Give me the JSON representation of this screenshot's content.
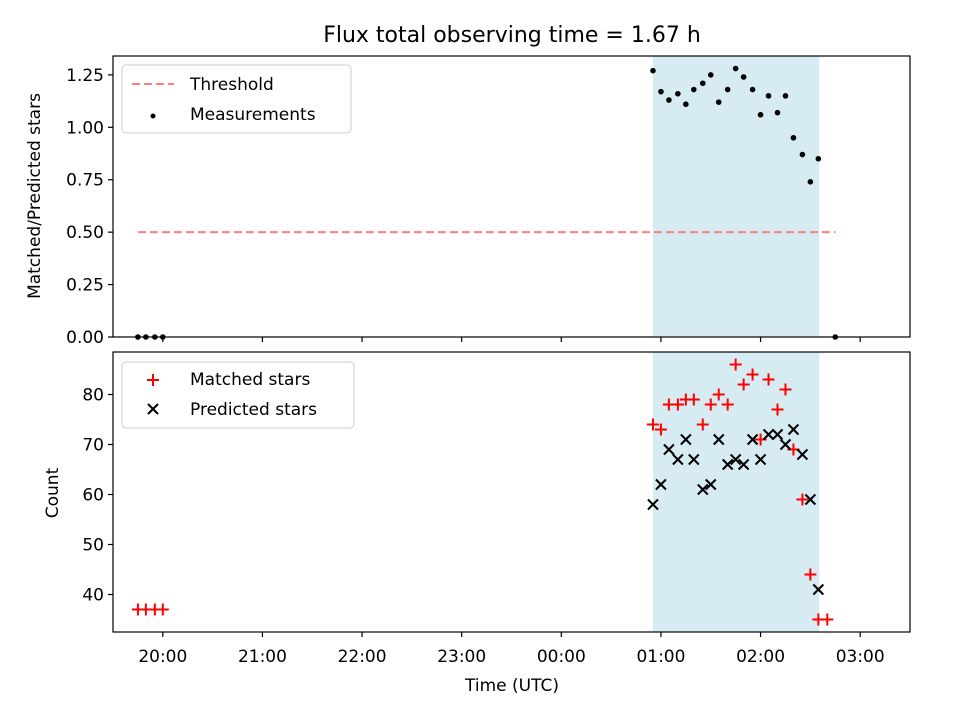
{
  "chart_data": [
    {
      "type": "scatter",
      "title": "Flux total observing time = 1.67 h",
      "xlabel": "",
      "ylabel": "Matched/Predicted stars",
      "xlim": [
        -0.5,
        7.5
      ],
      "ylim": [
        0,
        1.34
      ],
      "xtick_hours": [
        0.0,
        1.0,
        2.0,
        3.0,
        4.0,
        5.0,
        6.0,
        7.0
      ],
      "yticks": [
        0.0,
        0.25,
        0.5,
        0.75,
        1.0,
        1.25
      ],
      "ytick_labels": [
        "0.00",
        "0.25",
        "0.50",
        "0.75",
        "1.00",
        "1.25"
      ],
      "shaded_region": [
        4.92,
        6.59
      ],
      "threshold": {
        "name": "Threshold",
        "x": [
          -0.25,
          6.75
        ],
        "y": 0.5,
        "color": "#ff7f7f"
      },
      "measurements": {
        "name": "Measurements",
        "color": "#000000",
        "points": [
          [
            -0.25,
            0.0
          ],
          [
            -0.17,
            0.0
          ],
          [
            -0.08,
            0.0
          ],
          [
            0.0,
            0.0
          ],
          [
            4.92,
            1.27
          ],
          [
            5.0,
            1.17
          ],
          [
            5.08,
            1.13
          ],
          [
            5.17,
            1.16
          ],
          [
            5.25,
            1.11
          ],
          [
            5.33,
            1.18
          ],
          [
            5.42,
            1.21
          ],
          [
            5.5,
            1.25
          ],
          [
            5.58,
            1.12
          ],
          [
            5.67,
            1.18
          ],
          [
            5.75,
            1.28
          ],
          [
            5.83,
            1.24
          ],
          [
            5.92,
            1.18
          ],
          [
            6.0,
            1.06
          ],
          [
            6.08,
            1.15
          ],
          [
            6.17,
            1.07
          ],
          [
            6.25,
            1.15
          ],
          [
            6.33,
            0.95
          ],
          [
            6.42,
            0.87
          ],
          [
            6.5,
            0.74
          ],
          [
            6.58,
            0.85
          ],
          [
            6.75,
            0.0
          ]
        ]
      },
      "legend": {
        "location": "upper-left",
        "entries": [
          "Threshold",
          "Measurements"
        ]
      }
    },
    {
      "type": "scatter",
      "title": "",
      "xlabel": "Time (UTC)",
      "ylabel": "Count",
      "xlim": [
        -0.5,
        7.5
      ],
      "ylim": [
        32.5,
        88.5
      ],
      "xtick_hours": [
        0.0,
        1.0,
        2.0,
        3.0,
        4.0,
        5.0,
        6.0,
        7.0
      ],
      "xtick_labels": [
        "20:00",
        "21:00",
        "22:00",
        "23:00",
        "00:00",
        "01:00",
        "02:00",
        "03:00"
      ],
      "yticks": [
        40,
        50,
        60,
        70,
        80
      ],
      "ytick_labels": [
        "40",
        "50",
        "60",
        "70",
        "80"
      ],
      "shaded_region": [
        4.92,
        6.59
      ],
      "series": [
        {
          "name": "Matched stars",
          "marker": "+",
          "color": "#ff0000",
          "points": [
            [
              -0.25,
              37
            ],
            [
              -0.17,
              37
            ],
            [
              -0.08,
              37
            ],
            [
              0.0,
              37
            ],
            [
              4.92,
              74
            ],
            [
              5.0,
              73
            ],
            [
              5.08,
              78
            ],
            [
              5.17,
              78
            ],
            [
              5.25,
              79
            ],
            [
              5.33,
              79
            ],
            [
              5.42,
              74
            ],
            [
              5.5,
              78
            ],
            [
              5.58,
              80
            ],
            [
              5.67,
              78
            ],
            [
              5.75,
              86
            ],
            [
              5.83,
              82
            ],
            [
              5.92,
              84
            ],
            [
              6.0,
              71
            ],
            [
              6.08,
              83
            ],
            [
              6.17,
              77
            ],
            [
              6.25,
              81
            ],
            [
              6.33,
              69
            ],
            [
              6.42,
              59
            ],
            [
              6.5,
              44
            ],
            [
              6.58,
              35
            ],
            [
              6.67,
              35
            ]
          ]
        },
        {
          "name": "Predicted stars",
          "marker": "x",
          "color": "#000000",
          "points": [
            [
              4.92,
              58
            ],
            [
              5.0,
              62
            ],
            [
              5.08,
              69
            ],
            [
              5.17,
              67
            ],
            [
              5.25,
              71
            ],
            [
              5.33,
              67
            ],
            [
              5.42,
              61
            ],
            [
              5.5,
              62
            ],
            [
              5.58,
              71
            ],
            [
              5.67,
              66
            ],
            [
              5.75,
              67
            ],
            [
              5.83,
              66
            ],
            [
              5.92,
              71
            ],
            [
              6.0,
              67
            ],
            [
              6.08,
              72
            ],
            [
              6.17,
              72
            ],
            [
              6.25,
              70
            ],
            [
              6.33,
              73
            ],
            [
              6.42,
              68
            ],
            [
              6.5,
              59
            ],
            [
              6.58,
              41
            ]
          ]
        }
      ],
      "legend": {
        "location": "upper-left",
        "entries": [
          "Matched stars",
          "Predicted stars"
        ]
      }
    }
  ]
}
